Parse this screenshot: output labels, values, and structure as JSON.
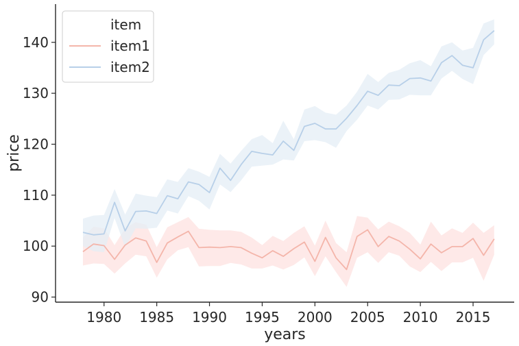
{
  "chart_data": {
    "type": "line",
    "xlabel": "years",
    "ylabel": "price",
    "xlim": [
      1975.4,
      2018.9
    ],
    "ylim": [
      89,
      147.5
    ],
    "xticks": [
      1980,
      1985,
      1990,
      1995,
      2000,
      2005,
      2010,
      2015
    ],
    "yticks": [
      90,
      100,
      110,
      120,
      130,
      140
    ],
    "legend": {
      "title": "item",
      "position": "top-left"
    },
    "x": [
      1978,
      1979,
      1980,
      1981,
      1982,
      1983,
      1984,
      1985,
      1986,
      1987,
      1988,
      1989,
      1990,
      1991,
      1992,
      1993,
      1994,
      1995,
      1996,
      1997,
      1998,
      1999,
      2000,
      2001,
      2002,
      2003,
      2004,
      2005,
      2006,
      2007,
      2008,
      2009,
      2010,
      2011,
      2012,
      2013,
      2014,
      2015,
      2016,
      2017
    ],
    "series": [
      {
        "name": "item1",
        "color": "#f4b5aa",
        "band_color": "#fde1e0",
        "values": [
          98.9,
          100.4,
          100.1,
          97.4,
          100.2,
          101.6,
          101.0,
          96.8,
          100.6,
          101.8,
          102.9,
          99.7,
          99.8,
          99.7,
          99.9,
          99.7,
          98.6,
          97.7,
          99.1,
          98.0,
          99.5,
          100.8,
          97.0,
          101.7,
          97.7,
          95.4,
          101.9,
          103.2,
          99.9,
          101.9,
          101.0,
          99.4,
          97.5,
          100.4,
          98.7,
          99.9,
          99.9,
          101.5,
          98.2,
          101.4
        ],
        "ci_lower": [
          96.2,
          96.6,
          96.5,
          94.6,
          96.6,
          98.3,
          98.0,
          93.8,
          97.4,
          99.2,
          99.8,
          96.0,
          96.1,
          96.1,
          96.7,
          96.4,
          95.6,
          95.6,
          96.2,
          95.4,
          96.3,
          97.8,
          94.1,
          98.0,
          94.9,
          92.0,
          97.7,
          98.8,
          96.7,
          98.8,
          98.1,
          96.0,
          94.9,
          96.9,
          95.1,
          96.8,
          96.8,
          97.7,
          93.2,
          98.3
        ],
        "ci_upper": [
          101.7,
          103.8,
          103.5,
          100.2,
          103.5,
          104.7,
          104.2,
          99.8,
          103.7,
          104.7,
          105.7,
          103.4,
          103.2,
          103.1,
          103.1,
          102.8,
          101.7,
          100.2,
          102.0,
          101.0,
          102.6,
          103.9,
          100.1,
          105.0,
          100.6,
          98.8,
          105.9,
          105.6,
          103.3,
          104.8,
          103.9,
          102.6,
          100.3,
          104.8,
          102.1,
          103.5,
          102.6,
          104.6,
          102.6,
          104.1
        ]
      },
      {
        "name": "item2",
        "color": "#b7cfe8",
        "band_color": "#e4edf6",
        "values": [
          102.7,
          102.2,
          102.4,
          108.6,
          103.0,
          106.8,
          106.9,
          106.4,
          109.9,
          109.3,
          112.6,
          112.1,
          110.5,
          115.3,
          112.9,
          116.0,
          118.6,
          118.2,
          117.9,
          120.6,
          118.8,
          123.5,
          124.1,
          123.0,
          123.0,
          125.1,
          127.6,
          130.4,
          129.6,
          131.6,
          131.5,
          132.9,
          133.0,
          132.4,
          136.0,
          137.4,
          135.5,
          135.0,
          140.5,
          142.3
        ],
        "ci_lower": [
          100.0,
          99.0,
          98.8,
          105.5,
          99.8,
          103.5,
          103.4,
          103.6,
          107.0,
          106.4,
          109.8,
          108.9,
          107.2,
          112.1,
          110.6,
          112.9,
          115.6,
          115.8,
          116.0,
          117.0,
          116.8,
          120.6,
          120.8,
          120.4,
          119.3,
          122.6,
          124.8,
          127.6,
          126.8,
          128.7,
          128.8,
          129.7,
          129.6,
          129.6,
          132.9,
          134.4,
          132.8,
          131.8,
          137.5,
          139.6
        ],
        "ci_upper": [
          105.4,
          106.0,
          106.1,
          111.2,
          106.2,
          110.3,
          109.9,
          109.6,
          113.1,
          112.6,
          115.3,
          114.6,
          113.6,
          118.1,
          116.2,
          118.7,
          121.0,
          121.8,
          120.2,
          124.6,
          121.0,
          126.8,
          127.5,
          126.2,
          125.8,
          127.6,
          130.3,
          133.8,
          132.2,
          134.0,
          134.6,
          135.9,
          136.5,
          135.3,
          139.2,
          140.0,
          138.4,
          138.9,
          143.7,
          144.5
        ]
      }
    ]
  }
}
